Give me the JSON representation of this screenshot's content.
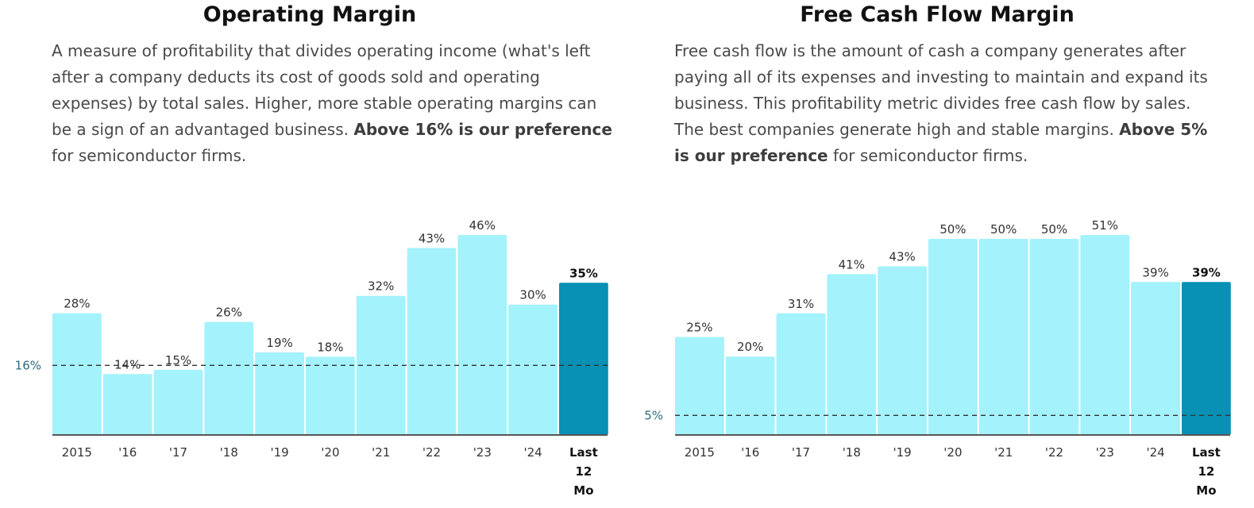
{
  "colors": {
    "bar": "#a4f2fb",
    "highlight": "#0890b5",
    "axis": "#555555",
    "reference_line": "#333333",
    "reference_label": "#2d6b80"
  },
  "chart_data": [
    {
      "type": "bar",
      "title": "Operating Margin",
      "description_parts": [
        "A measure of profitability that divides operating income (what's left after a company deducts its cost of goods sold and operating expenses) by total sales. Higher, more stable operating margins can be a sign of an advantaged business. ",
        "Above 16% is our preference",
        " for semiconductor firms."
      ],
      "categories": [
        "2015",
        "'16",
        "'17",
        "'18",
        "'19",
        "'20",
        "'21",
        "'22",
        "'23",
        "'24",
        "Last 12 Mo"
      ],
      "values": [
        28,
        14,
        15,
        26,
        19,
        18,
        32,
        43,
        46,
        30,
        35
      ],
      "value_labels": [
        "28%",
        "14%",
        "15%",
        "26%",
        "19%",
        "18%",
        "32%",
        "43%",
        "46%",
        "30%",
        "35%"
      ],
      "highlight_index": 10,
      "reference_line": {
        "value": 16,
        "label": "16%",
        "style": "dashed"
      },
      "ylim": [
        0,
        46
      ],
      "xlabel": "",
      "ylabel": "",
      "grid": false
    },
    {
      "type": "bar",
      "title": "Free Cash Flow Margin",
      "description_parts": [
        "Free cash flow is the amount of cash a company generates after paying all of its expenses and investing to maintain and expand its business. This profitability metric divides free cash flow by sales. The best companies generate high and stable margins. ",
        "Above 5% is our preference",
        " for semiconductor firms."
      ],
      "categories": [
        "2015",
        "'16",
        "'17",
        "'18",
        "'19",
        "'20",
        "'21",
        "'22",
        "'23",
        "'24",
        "Last 12 Mo"
      ],
      "values": [
        25,
        20,
        31,
        41,
        43,
        50,
        50,
        50,
        51,
        39,
        39
      ],
      "value_labels": [
        "25%",
        "20%",
        "31%",
        "41%",
        "43%",
        "50%",
        "50%",
        "50%",
        "51%",
        "39%",
        "39%"
      ],
      "highlight_index": 10,
      "reference_line": {
        "value": 5,
        "label": "5%",
        "style": "dashed"
      },
      "ylim": [
        0,
        51
      ],
      "xlabel": "",
      "ylabel": "",
      "grid": false
    }
  ]
}
